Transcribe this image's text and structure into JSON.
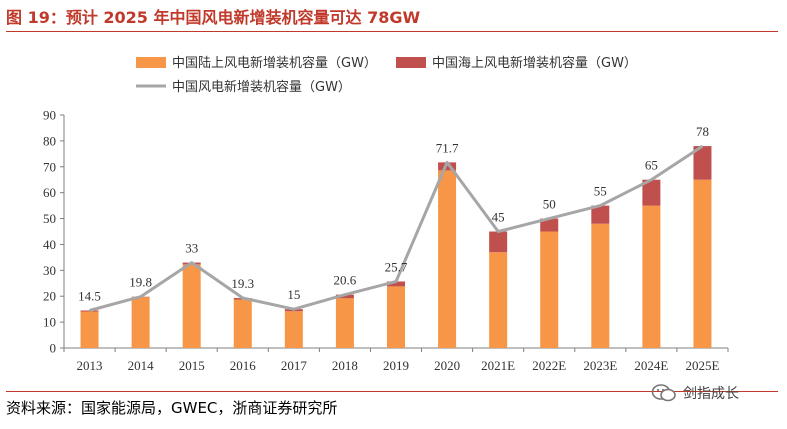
{
  "figure": {
    "title": "图 19：预计 2025 年中国风电新增装机容量可达 78GW",
    "source": "资料来源：国家能源局，GWEC，浙商证券研究所",
    "watermark": "剑指成长"
  },
  "colors": {
    "title": "#c0392b",
    "onshore": "#f79646",
    "offshore": "#c0504d",
    "total_line": "#a6a6a6",
    "axis": "#7f7f7f"
  },
  "chart_data": {
    "type": "bar",
    "stacked": true,
    "title": "",
    "xlabel": "",
    "ylabel": "",
    "ylim": [
      0,
      90
    ],
    "yticks": [
      0,
      10,
      20,
      30,
      40,
      50,
      60,
      70,
      80,
      90
    ],
    "grid": false,
    "legend_position": "top",
    "categories": [
      "2013",
      "2014",
      "2015",
      "2016",
      "2017",
      "2018",
      "2019",
      "2020",
      "2021E",
      "2022E",
      "2023E",
      "2024E",
      "2025E"
    ],
    "series": [
      {
        "name": "中国陆上风电新增装机容量（GW）",
        "kind": "bar",
        "values": [
          14.1,
          19.6,
          32.3,
          18.7,
          14.2,
          19.2,
          23.8,
          68.6,
          37,
          45,
          48,
          55,
          65
        ]
      },
      {
        "name": "中国海上风电新增装机容量（GW）",
        "kind": "bar",
        "values": [
          0.4,
          0.2,
          0.7,
          0.6,
          0.8,
          1.4,
          1.9,
          3.1,
          8,
          5,
          7,
          10,
          13
        ]
      },
      {
        "name": "中国风电新增装机容量（GW）",
        "kind": "line",
        "values": [
          14.5,
          19.8,
          33,
          19.3,
          15,
          20.6,
          25.7,
          71.7,
          45,
          50,
          55,
          65,
          78
        ]
      }
    ],
    "data_labels": [
      "14.5",
      "19.8",
      "33",
      "19.3",
      "15",
      "20.6",
      "25.7",
      "71.7",
      "45",
      "50",
      "55",
      "65",
      "78"
    ]
  }
}
